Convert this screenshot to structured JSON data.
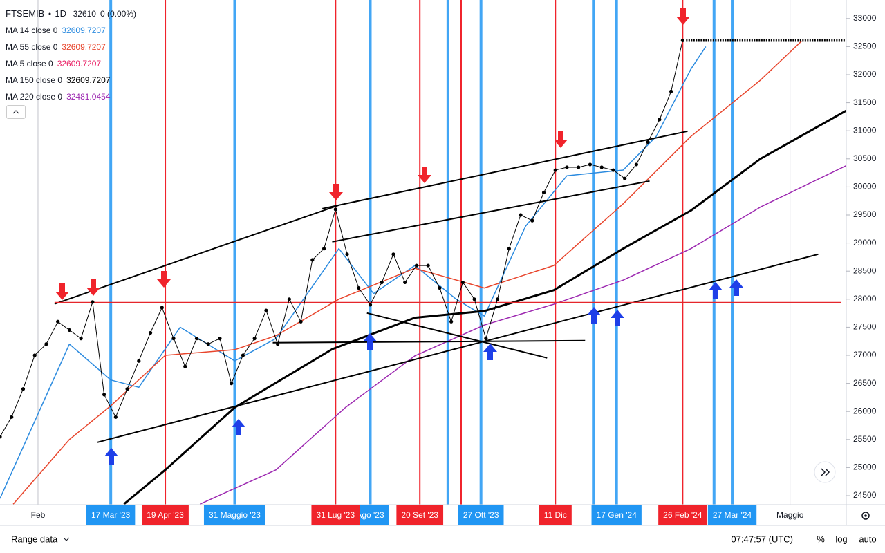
{
  "chart_data": {
    "type": "line",
    "symbol": "FTSEMIB",
    "interval": "1D",
    "last": 32610,
    "change": "0 (0.00%)",
    "log_scale": false,
    "xgrid": true,
    "xlim": [
      "2023-01-09",
      "2024-06-04"
    ],
    "ylim": [
      24340,
      33330
    ],
    "yticks": [
      24500,
      25000,
      25500,
      26000,
      26500,
      27000,
      27500,
      28000,
      28500,
      29000,
      29500,
      30000,
      30500,
      31000,
      31500,
      32000,
      32500,
      33000
    ],
    "xticks": [
      {
        "value": "2023-02-01",
        "label": "Feb"
      },
      {
        "value": "2024-05-01",
        "label": "Maggio"
      }
    ],
    "series": [
      {
        "color": "#000000",
        "dots": true,
        "x": [
          "2023-01-09",
          "2023-01-16",
          "2023-01-23",
          "2023-01-30",
          "2023-02-06",
          "2023-02-13",
          "2023-02-20",
          "2023-02-27",
          "2023-03-06",
          "2023-03-13",
          "2023-03-20",
          "2023-03-27",
          "2023-04-03",
          "2023-04-10",
          "2023-04-17",
          "2023-04-24",
          "2023-05-01",
          "2023-05-08",
          "2023-05-15",
          "2023-05-22",
          "2023-05-29",
          "2023-06-05",
          "2023-06-12",
          "2023-06-19",
          "2023-06-26",
          "2023-07-03",
          "2023-07-10",
          "2023-07-17",
          "2023-07-24",
          "2023-07-31",
          "2023-08-07",
          "2023-08-14",
          "2023-08-21",
          "2023-08-28",
          "2023-09-04",
          "2023-09-11",
          "2023-09-18",
          "2023-09-25",
          "2023-10-02",
          "2023-10-09",
          "2023-10-16",
          "2023-10-23",
          "2023-10-30",
          "2023-11-06",
          "2023-11-13",
          "2023-11-20",
          "2023-11-27",
          "2023-12-04",
          "2023-12-11",
          "2023-12-18",
          "2023-12-25",
          "2024-01-01",
          "2024-01-08",
          "2024-01-15",
          "2024-01-22",
          "2024-01-29",
          "2024-02-05",
          "2024-02-12",
          "2024-02-19",
          "2024-02-26"
        ],
        "values": [
          25550,
          25900,
          26400,
          27000,
          27200,
          27600,
          27450,
          27300,
          27950,
          26300,
          25900,
          26400,
          26900,
          27400,
          27850,
          27300,
          26800,
          27300,
          27200,
          27300,
          26500,
          27000,
          27300,
          27800,
          27200,
          28000,
          27600,
          28700,
          28900,
          29600,
          28800,
          28200,
          27900,
          28300,
          28800,
          28300,
          28600,
          28600,
          28200,
          27600,
          28300,
          28000,
          27300,
          28000,
          28900,
          29500,
          29400,
          29900,
          30300,
          30350,
          30350,
          30400,
          30350,
          30300,
          30150,
          30400,
          30800,
          31200,
          31700,
          32610
        ]
      },
      {
        "name": "MA 14 close 0",
        "last": 32609.7207,
        "color": "#2a8adf",
        "x": [
          "2023-01-09",
          "2023-02-20",
          "2023-03-17",
          "2023-04-03",
          "2023-04-28",
          "2023-05-31",
          "2023-06-25",
          "2023-08-02",
          "2023-08-23",
          "2023-09-17",
          "2023-10-12",
          "2023-10-29",
          "2023-11-23",
          "2023-12-18",
          "2024-01-21",
          "2024-02-10",
          "2024-03-02",
          "2024-03-11"
        ],
        "values": [
          24450,
          27200,
          26560,
          26430,
          27500,
          26900,
          27300,
          28900,
          28100,
          28600,
          28000,
          27700,
          29300,
          30200,
          30300,
          30900,
          32100,
          32500
        ]
      },
      {
        "name": "MA 55 close 0",
        "last": 32609.7207,
        "color": "#e8452c",
        "x": [
          "2023-01-17",
          "2023-02-20",
          "2023-03-17",
          "2023-04-19",
          "2023-05-31",
          "2023-06-25",
          "2023-08-02",
          "2023-09-17",
          "2023-10-29",
          "2023-12-10",
          "2024-01-21",
          "2024-03-02",
          "2024-04-13",
          "2024-05-08"
        ],
        "values": [
          24350,
          25500,
          26100,
          27000,
          27100,
          27350,
          28000,
          28550,
          28200,
          28600,
          29700,
          30900,
          31900,
          32600
        ]
      },
      {
        "name": "MA 5 close 0",
        "last": 32609.7207,
        "color": "#e91e63"
      },
      {
        "name": "MA 150 close 0",
        "last": 32609.7207,
        "color": "#000000",
        "x": [
          "2023-03-25",
          "2023-04-19",
          "2023-05-31",
          "2023-07-29",
          "2023-09-17",
          "2023-10-29",
          "2023-12-10",
          "2024-01-21",
          "2024-03-02",
          "2024-04-13",
          "2024-06-04"
        ],
        "values": [
          24350,
          24960,
          26070,
          27110,
          27670,
          27790,
          28160,
          28900,
          29580,
          30500,
          31360
        ]
      },
      {
        "name": "MA 220 close 0",
        "last": 32481.0454,
        "color": "#9c27b0",
        "x": [
          "2023-05-10",
          "2023-06-25",
          "2023-08-06",
          "2023-09-17",
          "2023-10-29",
          "2023-12-10",
          "2024-01-21",
          "2024-03-02",
          "2024-04-13",
          "2024-06-04"
        ],
        "values": [
          24350,
          24960,
          26070,
          26990,
          27540,
          27910,
          28340,
          28900,
          29640,
          30380
        ]
      }
    ],
    "drawings": [
      {
        "x": [
          "2023-02-11",
          "2023-08-02"
        ],
        "values": [
          27915,
          29675
        ],
        "color": "#000000"
      },
      {
        "x": [
          "2023-07-23",
          "2024-02-29"
        ],
        "values": [
          29613,
          30993
        ],
        "color": "#000000"
      },
      {
        "x": [
          "2023-07-29",
          "2024-02-06"
        ],
        "values": [
          29022,
          30106
        ],
        "color": "#000000"
      },
      {
        "x": [
          "2023-03-09",
          "2024-05-18"
        ],
        "values": [
          25451,
          28800
        ],
        "color": "#000000"
      },
      {
        "x": [
          "2023-06-23",
          "2023-12-29"
        ],
        "values": [
          27224,
          27261
        ],
        "color": "#000000"
      },
      {
        "x": [
          "2023-08-19",
          "2023-12-06"
        ],
        "values": [
          27754,
          26953
        ],
        "color": "#000000"
      },
      {
        "x": [
          "2023-02-11",
          "2024-06-01"
        ],
        "values": [
          27940,
          27940
        ],
        "color": "#e5262b"
      }
    ],
    "markers": [
      {
        "date": "2023-03-17",
        "color": "#2196f3",
        "label": "17 Mar '23"
      },
      {
        "date": "2023-04-19",
        "color": "#f0232b",
        "label": "19 Apr '23"
      },
      {
        "date": "2023-05-31",
        "color": "#2196f3",
        "label": "31 Maggio '23"
      },
      {
        "date": "2023-08-21",
        "color": "#2196f3",
        "label": "Ago '23"
      },
      {
        "date": "2023-07-31",
        "color": "#f0232b",
        "label": "31 Lug '23"
      },
      {
        "date": "2023-10-07",
        "color": "#2196f3",
        "label": null
      },
      {
        "date": "2023-10-15",
        "color": "#f0232b",
        "label": null
      },
      {
        "date": "2023-09-20",
        "color": "#f0232b",
        "label": "20 Set '23"
      },
      {
        "date": "2023-10-27",
        "color": "#2196f3",
        "label": "27 Ott '23"
      },
      {
        "date": "2023-12-11",
        "color": "#f0232b",
        "label": "11 Dic"
      },
      {
        "date": "2024-01-03",
        "color": "#2196f3",
        "label": null
      },
      {
        "date": "2024-01-17",
        "color": "#2196f3",
        "label": "17 Gen '24"
      },
      {
        "date": "2024-02-26",
        "color": "#f0232b",
        "label": "26 Feb '24"
      },
      {
        "date": "2024-03-16",
        "color": "#2196f3",
        "label": null
      },
      {
        "date": "2024-03-27",
        "color": "#2196f3",
        "label": "27 Mar '24"
      }
    ]
  },
  "toolbar": {
    "range": "Range data",
    "time": "07:47:57 (UTC)",
    "percent": "%",
    "log": "log",
    "auto": "auto"
  }
}
